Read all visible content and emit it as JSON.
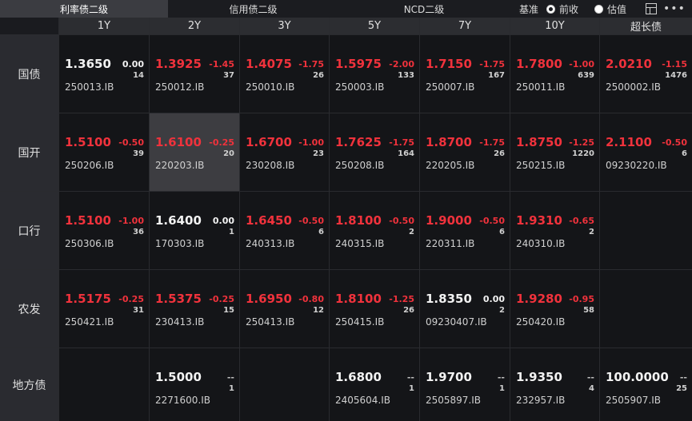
{
  "tabs": [
    {
      "label": "利率债二级",
      "active": true
    },
    {
      "label": "信用债二级",
      "active": false
    },
    {
      "label": "NCD二级",
      "active": false
    }
  ],
  "toolbar": {
    "basis_label": "基准",
    "options": [
      {
        "label": "前收",
        "selected": true
      },
      {
        "label": "估值",
        "selected": false
      }
    ],
    "more_label": "•••"
  },
  "columns": [
    "1Y",
    "2Y",
    "3Y",
    "5Y",
    "7Y",
    "10Y",
    "超长债"
  ],
  "rows": [
    {
      "label": "国债",
      "cells": [
        {
          "price": "1.3650",
          "change": "0.00",
          "volume": "14",
          "code": "250013.IB",
          "color": "white"
        },
        {
          "price": "1.3925",
          "change": "-1.45",
          "volume": "37",
          "code": "250012.IB",
          "color": "red"
        },
        {
          "price": "1.4075",
          "change": "-1.75",
          "volume": "26",
          "code": "250010.IB",
          "color": "red"
        },
        {
          "price": "1.5975",
          "change": "-2.00",
          "volume": "133",
          "code": "250003.IB",
          "color": "red"
        },
        {
          "price": "1.7150",
          "change": "-1.75",
          "volume": "167",
          "code": "250007.IB",
          "color": "red"
        },
        {
          "price": "1.7800",
          "change": "-1.00",
          "volume": "639",
          "code": "250011.IB",
          "color": "red"
        },
        {
          "price": "2.0210",
          "change": "-1.15",
          "volume": "1476",
          "code": "2500002.IB",
          "color": "red"
        }
      ]
    },
    {
      "label": "国开",
      "cells": [
        {
          "price": "1.5100",
          "change": "-0.50",
          "volume": "39",
          "code": "250206.IB",
          "color": "red"
        },
        {
          "price": "1.6100",
          "change": "-0.25",
          "volume": "20",
          "code": "220203.IB",
          "color": "red",
          "selected": true
        },
        {
          "price": "1.6700",
          "change": "-1.00",
          "volume": "23",
          "code": "230208.IB",
          "color": "red"
        },
        {
          "price": "1.7625",
          "change": "-1.75",
          "volume": "164",
          "code": "250208.IB",
          "color": "red"
        },
        {
          "price": "1.8700",
          "change": "-1.75",
          "volume": "26",
          "code": "220205.IB",
          "color": "red"
        },
        {
          "price": "1.8750",
          "change": "-1.25",
          "volume": "1220",
          "code": "250215.IB",
          "color": "red"
        },
        {
          "price": "2.1100",
          "change": "-0.50",
          "volume": "6",
          "code": "09230220.IB",
          "color": "red"
        }
      ]
    },
    {
      "label": "口行",
      "cells": [
        {
          "price": "1.5100",
          "change": "-1.00",
          "volume": "36",
          "code": "250306.IB",
          "color": "red"
        },
        {
          "price": "1.6400",
          "change": "0.00",
          "volume": "1",
          "code": "170303.IB",
          "color": "white"
        },
        {
          "price": "1.6450",
          "change": "-0.50",
          "volume": "6",
          "code": "240313.IB",
          "color": "red"
        },
        {
          "price": "1.8100",
          "change": "-0.50",
          "volume": "2",
          "code": "240315.IB",
          "color": "red"
        },
        {
          "price": "1.9000",
          "change": "-0.50",
          "volume": "6",
          "code": "220311.IB",
          "color": "red"
        },
        {
          "price": "1.9310",
          "change": "-0.65",
          "volume": "2",
          "code": "240310.IB",
          "color": "red"
        },
        null
      ]
    },
    {
      "label": "农发",
      "cells": [
        {
          "price": "1.5175",
          "change": "-0.25",
          "volume": "31",
          "code": "250421.IB",
          "color": "red"
        },
        {
          "price": "1.5375",
          "change": "-0.25",
          "volume": "15",
          "code": "230413.IB",
          "color": "red"
        },
        {
          "price": "1.6950",
          "change": "-0.80",
          "volume": "12",
          "code": "250413.IB",
          "color": "red"
        },
        {
          "price": "1.8100",
          "change": "-1.25",
          "volume": "26",
          "code": "250415.IB",
          "color": "red"
        },
        {
          "price": "1.8350",
          "change": "0.00",
          "volume": "2",
          "code": "09230407.IB",
          "color": "white"
        },
        {
          "price": "1.9280",
          "change": "-0.95",
          "volume": "58",
          "code": "250420.IB",
          "color": "red"
        },
        null
      ]
    },
    {
      "label": "地方债",
      "cells": [
        null,
        {
          "price": "1.5000",
          "change": "--",
          "volume": "1",
          "code": "2271600.IB",
          "color": "white"
        },
        null,
        {
          "price": "1.6800",
          "change": "--",
          "volume": "1",
          "code": "2405604.IB",
          "color": "white"
        },
        {
          "price": "1.9700",
          "change": "--",
          "volume": "1",
          "code": "2505897.IB",
          "color": "white"
        },
        {
          "price": "1.9350",
          "change": "--",
          "volume": "4",
          "code": "232957.IB",
          "color": "white"
        },
        {
          "price": "100.0000",
          "change": "--",
          "volume": "25",
          "code": "2505907.IB",
          "color": "white"
        }
      ]
    }
  ],
  "colors": {
    "up": "#f0323c",
    "flat": "#f2f2f2",
    "selected_bg": "#3d3d41"
  }
}
